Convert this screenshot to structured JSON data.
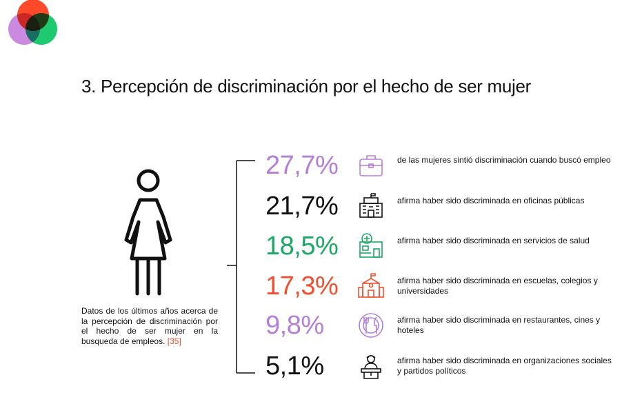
{
  "title": "3. Percepción de discriminación por el hecho de ser mujer",
  "description": {
    "text": "Datos de los últimos años acerca de la percepción de discriminación por el hecho de ser mujer en la busqueda de empleos.",
    "reference": "[35]"
  },
  "rows": [
    {
      "stat": "27,7%",
      "color": "#b57fd6",
      "text": "de las mujeres sintió discriminación cuando buscó empleo"
    },
    {
      "stat": "21,7%",
      "color": "#111111",
      "text": "afirma haber sido discriminada en oficinas públicas"
    },
    {
      "stat": "18,5%",
      "color": "#1aa864",
      "text": "afirma haber sido discriminada en servicios de salud"
    },
    {
      "stat": "17,3%",
      "color": "#f0502f",
      "text": "afirma haber sido discriminada en escuelas, colegios y universidades"
    },
    {
      "stat": "9,8%",
      "color": "#b57fd6",
      "text": "afirma haber sido discriminada en restaurantes, cines y hoteles"
    },
    {
      "stat": "5,1%",
      "color": "#111111",
      "text": "afirma haber sido discriminada en organizaciones sociales y partidos políticos"
    }
  ]
}
